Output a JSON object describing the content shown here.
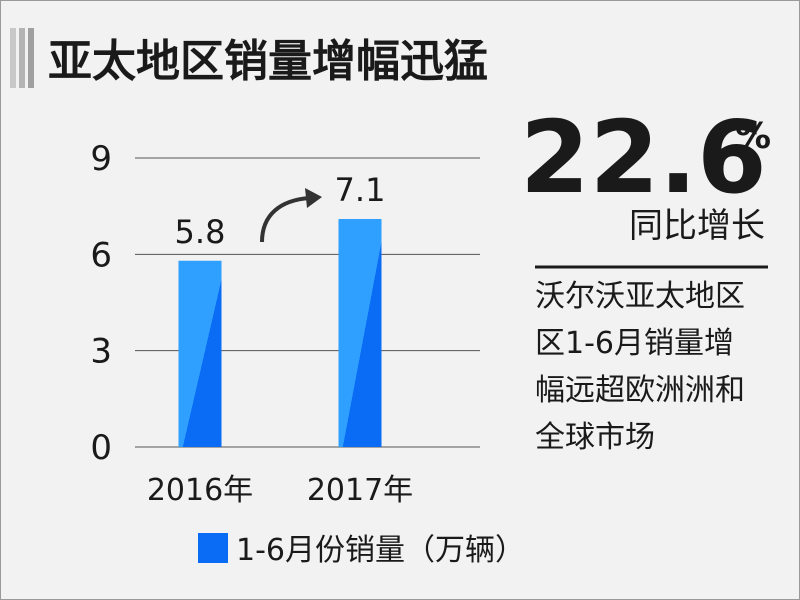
{
  "chart_data": {
    "type": "bar",
    "title": "亚太地区销量增幅迅猛",
    "categories": [
      "2016年",
      "2017年"
    ],
    "series": [
      {
        "name": "1-6月份销量（万辆）",
        "color": "#0a6cf5",
        "values": [
          5.8,
          7.1
        ]
      }
    ],
    "ylim": [
      0,
      9
    ],
    "yticks": [
      0,
      3,
      6,
      9
    ],
    "grid": true
  },
  "highlight": {
    "value": "22.6",
    "unit": "%",
    "label": "同比增长"
  },
  "note": {
    "lines": [
      "沃尔沃亚太地区",
      "区1-6月销量增",
      "幅远超欧洲洲和",
      "全球市场"
    ]
  }
}
